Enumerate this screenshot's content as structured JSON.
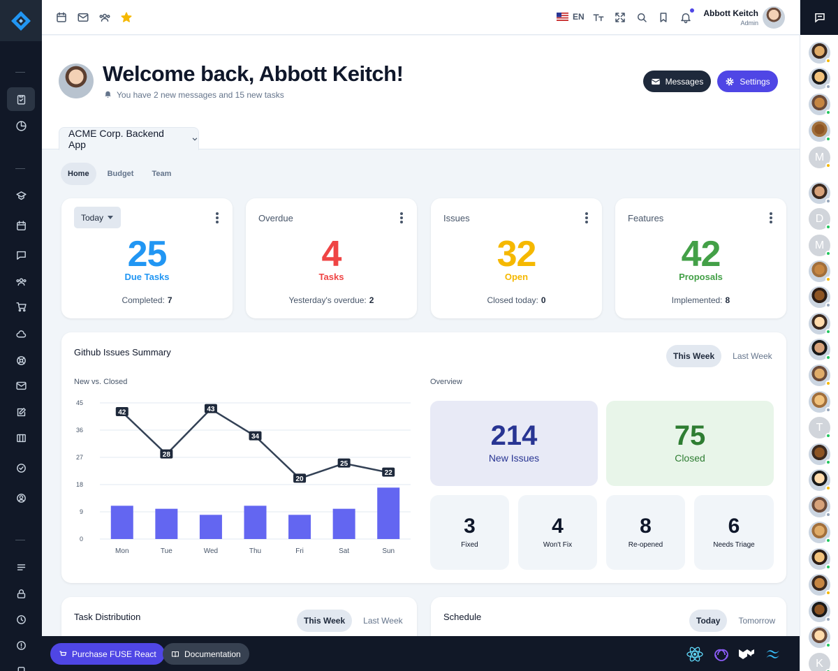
{
  "topbar": {
    "language": "EN",
    "user_name": "Abbott Keitch",
    "user_role": "Admin"
  },
  "header": {
    "welcome": "Welcome back, Abbott Keitch!",
    "subtitle": "You have 2 new messages and 15 new tasks",
    "messages_button": "Messages",
    "settings_button": "Settings",
    "project": "ACME Corp. Backend App"
  },
  "tabs": [
    "Home",
    "Budget",
    "Team"
  ],
  "stats": [
    {
      "title": "Today",
      "value": "25",
      "label": "Due Tasks",
      "foot_label": "Completed:",
      "foot_value": "7",
      "color": "#2563eb"
    },
    {
      "title": "Overdue",
      "value": "4",
      "label": "Tasks",
      "foot_label": "Yesterday's overdue:",
      "foot_value": "2",
      "color": "#ef4444"
    },
    {
      "title": "Issues",
      "value": "32",
      "label": "Open",
      "foot_label": "Closed today:",
      "foot_value": "0",
      "color": "#f5b800"
    },
    {
      "title": "Features",
      "value": "42",
      "label": "Proposals",
      "foot_label": "Implemented:",
      "foot_value": "8",
      "color": "#43a047"
    }
  ],
  "github": {
    "title": "Github Issues Summary",
    "this_week": "This Week",
    "last_week": "Last Week",
    "chart_title": "New vs. Closed",
    "overview_title": "Overview",
    "overview": {
      "new_issues": {
        "value": "214",
        "label": "New Issues"
      },
      "closed": {
        "value": "75",
        "label": "Closed"
      },
      "small": [
        {
          "value": "3",
          "label": "Fixed"
        },
        {
          "value": "4",
          "label": "Won't Fix"
        },
        {
          "value": "8",
          "label": "Re-opened"
        },
        {
          "value": "6",
          "label": "Needs Triage"
        }
      ]
    }
  },
  "chart_data": {
    "type": "bar",
    "title": "New vs. Closed",
    "categories": [
      "Mon",
      "Tue",
      "Wed",
      "Thu",
      "Fri",
      "Sat",
      "Sun"
    ],
    "ylim": [
      0,
      45
    ],
    "yticks": [
      "0",
      "9",
      "18",
      "27",
      "36",
      "45"
    ],
    "series": [
      {
        "type": "line",
        "values": [
          42,
          28,
          43,
          34,
          20,
          25,
          22
        ],
        "color": "#334155"
      },
      {
        "type": "bar",
        "values": [
          11,
          10,
          8,
          11,
          8,
          10,
          17
        ],
        "color": "#6366f1"
      }
    ],
    "grid": true
  },
  "task_distribution": {
    "title": "Task Distribution",
    "this_week": "This Week",
    "last_week": "Last Week"
  },
  "schedule": {
    "title": "Schedule",
    "today": "Today",
    "tomorrow": "Tomorrow"
  },
  "bottombar": {
    "purchase": "Purchase FUSE React",
    "docs": "Documentation"
  },
  "contacts": {
    "letters": [
      "M",
      "D",
      "M",
      "T",
      "K"
    ]
  }
}
